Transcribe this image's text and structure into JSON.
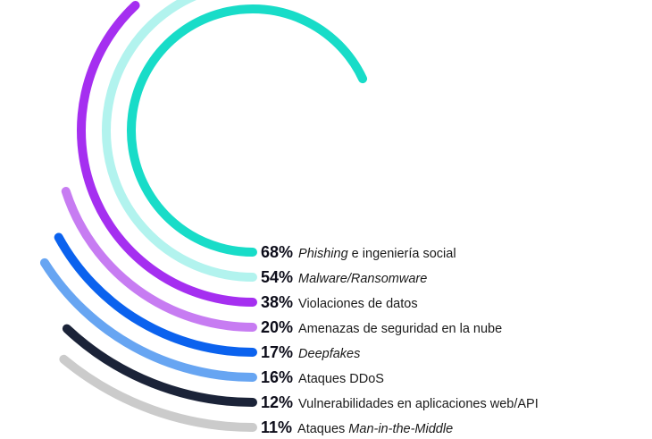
{
  "chart_data": {
    "type": "radial-bar",
    "max_value": 100,
    "unit": "%",
    "series": [
      {
        "value": 68,
        "value_label": "68%",
        "label": [
          {
            "t": "Phishing",
            "i": true
          },
          {
            "t": " e ingeniería social",
            "i": false
          }
        ],
        "color": "#18dcc8"
      },
      {
        "value": 54,
        "value_label": "54%",
        "label": [
          {
            "t": "Malware/Ransomware",
            "i": true
          }
        ],
        "color": "#b2f3ee"
      },
      {
        "value": 38,
        "value_label": "38%",
        "label": [
          {
            "t": "Violaciones de datos",
            "i": false
          }
        ],
        "color": "#a52ff0"
      },
      {
        "value": 20,
        "value_label": "20%",
        "label": [
          {
            "t": "Amenazas de seguridad en la nube",
            "i": false
          }
        ],
        "color": "#c77cf2"
      },
      {
        "value": 17,
        "value_label": "17%",
        "label": [
          {
            "t": "Deepfakes",
            "i": true
          }
        ],
        "color": "#0b62ee"
      },
      {
        "value": 16,
        "value_label": "16%",
        "label": [
          {
            "t": "Ataques DDoS",
            "i": false
          }
        ],
        "color": "#67a5f2"
      },
      {
        "value": 12,
        "value_label": "12%",
        "label": [
          {
            "t": "Vulnerabilidades en aplicaciones web/API",
            "i": false
          }
        ],
        "color": "#1b2338"
      },
      {
        "value": 11,
        "value_label": "11%",
        "label": [
          {
            "t": "Ataques ",
            "i": false
          },
          {
            "t": "Man-in-the-Middle",
            "i": true
          }
        ],
        "color": "#cbcbcb"
      }
    ]
  }
}
